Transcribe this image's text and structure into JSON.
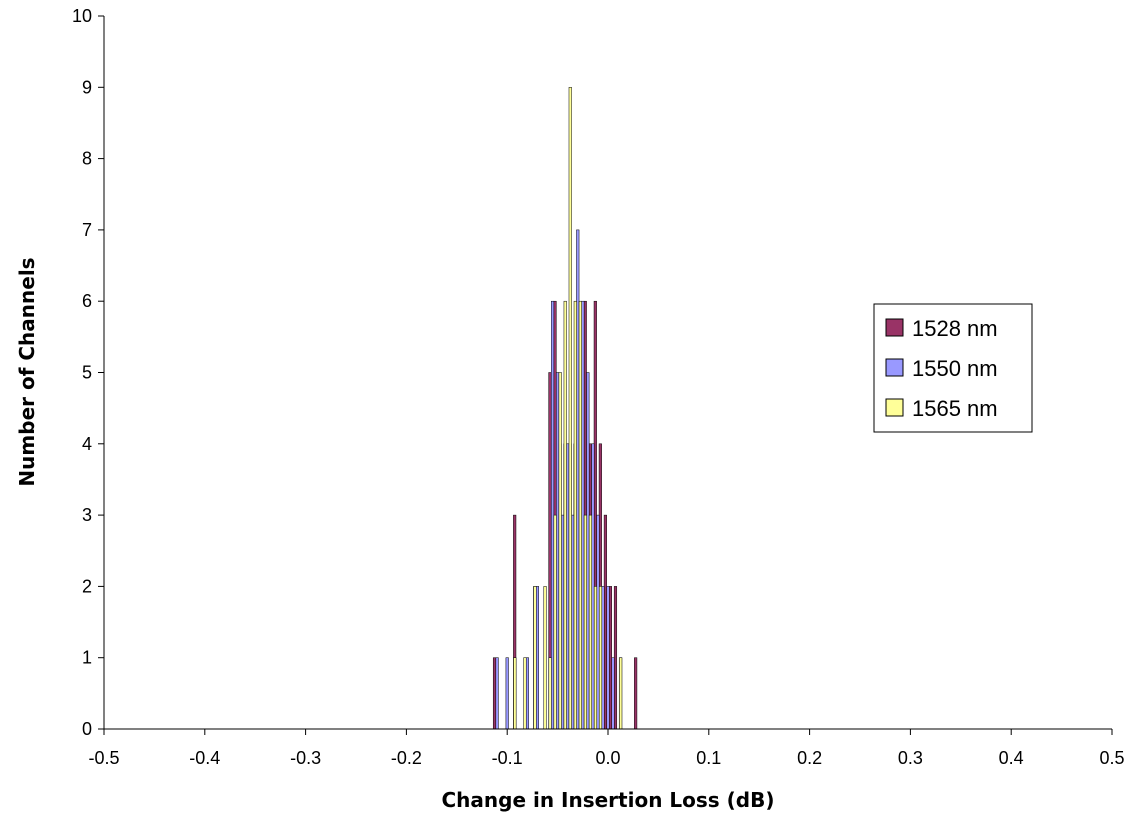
{
  "chart_data": {
    "type": "bar",
    "xlabel": "Change in Insertion Loss (dB)",
    "ylabel": "Number of Channels",
    "xlim": [
      -0.5,
      0.5
    ],
    "ylim": [
      0,
      10
    ],
    "x_ticks": [
      "-0.5",
      "-0.4",
      "-0.3",
      "-0.2",
      "-0.1",
      "0.0",
      "0.1",
      "0.2",
      "0.3",
      "0.4",
      "0.5"
    ],
    "y_ticks": [
      "0",
      "1",
      "2",
      "3",
      "4",
      "5",
      "6",
      "7",
      "8",
      "9",
      "10"
    ],
    "bin_width": 0.005,
    "bins": [
      -0.11,
      -0.105,
      -0.1,
      -0.095,
      -0.09,
      -0.085,
      -0.08,
      -0.075,
      -0.07,
      -0.065,
      -0.06,
      -0.055,
      -0.05,
      -0.045,
      -0.04,
      -0.035,
      -0.03,
      -0.025,
      -0.02,
      -0.015,
      -0.01,
      -0.005,
      0.0,
      0.005,
      0.01,
      0.015,
      0.02,
      0.025,
      0.03,
      0.035,
      0.04,
      0.045,
      0.05,
      0.055,
      0.06,
      0.065
    ],
    "series": [
      {
        "name": "1528 nm",
        "color": "#993366",
        "values": [
          1,
          0,
          0,
          0,
          3,
          0,
          0,
          0,
          2,
          0,
          0,
          5,
          6,
          4,
          4,
          4,
          4,
          4,
          6,
          4,
          6,
          4,
          3,
          2,
          2,
          1,
          0,
          0,
          1,
          0,
          0,
          0,
          0,
          0,
          0,
          0
        ]
      },
      {
        "name": "1550 nm",
        "color": "#9999ff",
        "values": [
          1,
          0,
          1,
          0,
          0,
          0,
          1,
          0,
          2,
          0,
          0,
          6,
          5,
          3,
          4,
          3,
          7,
          6,
          5,
          4,
          3,
          2,
          2,
          1,
          0,
          0,
          0,
          0,
          0,
          0,
          0,
          0,
          0,
          0,
          0,
          0
        ]
      },
      {
        "name": "1565 nm",
        "color": "#ffff99",
        "values": [
          0,
          0,
          0,
          1,
          0,
          1,
          0,
          2,
          0,
          2,
          1,
          3,
          5,
          6,
          9,
          6,
          6,
          3,
          3,
          2,
          2,
          0,
          0,
          0,
          1,
          0,
          0,
          0,
          0,
          0,
          0,
          0,
          0,
          0,
          0,
          0
        ]
      }
    ],
    "legend": {
      "position": "right"
    },
    "grid": false
  }
}
